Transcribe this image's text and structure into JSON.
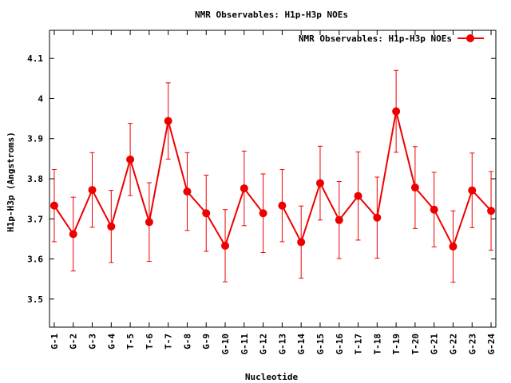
{
  "chart_data": {
    "type": "line",
    "title": "NMR Observables: H1p-H3p NOEs",
    "xlabel": "Nucleotide",
    "ylabel": "H1p-H3p (Angstroms)",
    "ylim": [
      3.43,
      4.17
    ],
    "yticks": [
      3.5,
      3.6,
      3.7,
      3.8,
      3.9,
      4,
      4.1
    ],
    "ytick_labels": [
      "3.5",
      "3.6",
      "3.7",
      "3.8",
      "3.9",
      "4",
      "4.1"
    ],
    "legend_position": "top-right",
    "grid": false,
    "colors": {
      "series": "#ee0000",
      "axis": "#000000"
    },
    "categories": [
      "G-1",
      "G-2",
      "G-3",
      "G-4",
      "T-5",
      "T-6",
      "T-7",
      "G-8",
      "G-9",
      "G-10",
      "G-11",
      "G-12",
      "G-13",
      "G-14",
      "G-15",
      "G-16",
      "T-17",
      "T-18",
      "T-19",
      "T-20",
      "G-21",
      "G-22",
      "G-23",
      "G-24"
    ],
    "series": [
      {
        "name": "NMR Observables: H1p-H3p NOEs",
        "segments": [
          {
            "x": [
              1,
              2,
              3,
              4,
              5,
              6,
              7,
              8,
              9,
              10,
              11,
              12
            ],
            "y": [
              3.733,
              3.662,
              3.772,
              3.681,
              3.848,
              3.692,
              3.944,
              3.768,
              3.714,
              3.633,
              3.776,
              3.714
            ],
            "err": [
              0.09,
              0.092,
              0.093,
              0.09,
              0.09,
              0.098,
              0.095,
              0.097,
              0.095,
              0.09,
              0.093,
              0.098
            ]
          },
          {
            "x": [
              13,
              14,
              15,
              16,
              17,
              18,
              19,
              20,
              21,
              22,
              23,
              24
            ],
            "y": [
              3.733,
              3.642,
              3.789,
              3.697,
              3.757,
              3.703,
              3.968,
              3.778,
              3.723,
              3.631,
              3.771,
              3.72
            ],
            "err": [
              0.09,
              0.09,
              0.092,
              0.096,
              0.11,
              0.101,
              0.102,
              0.102,
              0.093,
              0.089,
              0.093,
              0.098
            ]
          }
        ]
      }
    ]
  }
}
